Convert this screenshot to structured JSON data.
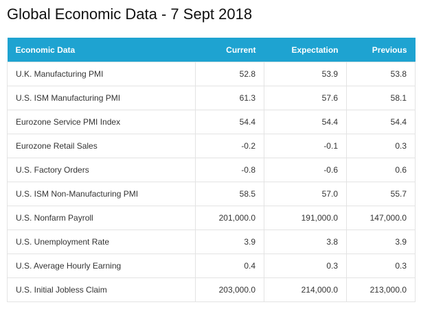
{
  "title": "Global Economic Data - 7 Sept 2018",
  "table": {
    "headers": [
      "Economic Data",
      "Current",
      "Expectation",
      "Previous"
    ],
    "rows": [
      [
        "U.K. Manufacturing PMI",
        "52.8",
        "53.9",
        "53.8"
      ],
      [
        "U.S. ISM Manufacturing PMI",
        "61.3",
        "57.6",
        "58.1"
      ],
      [
        "Eurozone Service PMI Index",
        "54.4",
        "54.4",
        "54.4"
      ],
      [
        "Eurozone Retail Sales",
        "-0.2",
        "-0.1",
        "0.3"
      ],
      [
        "U.S. Factory Orders",
        "-0.8",
        "-0.6",
        "0.6"
      ],
      [
        "U.S. ISM Non-Manufacturing PMI",
        "58.5",
        "57.0",
        "55.7"
      ],
      [
        "U.S. Nonfarm Payroll",
        "201,000.0",
        "191,000.0",
        "147,000.0"
      ],
      [
        "U.S. Unemployment Rate",
        "3.9",
        "3.8",
        "3.9"
      ],
      [
        "U.S. Average Hourly Earning",
        "0.4",
        "0.3",
        "0.3"
      ],
      [
        "U.S. Initial Jobless Claim",
        "203,000.0",
        "214,000.0",
        "213,000.0"
      ]
    ]
  },
  "colors": {
    "header_background": "#1ea3d1",
    "header_text": "#ffffff",
    "cell_border": "#e3e3e3"
  }
}
